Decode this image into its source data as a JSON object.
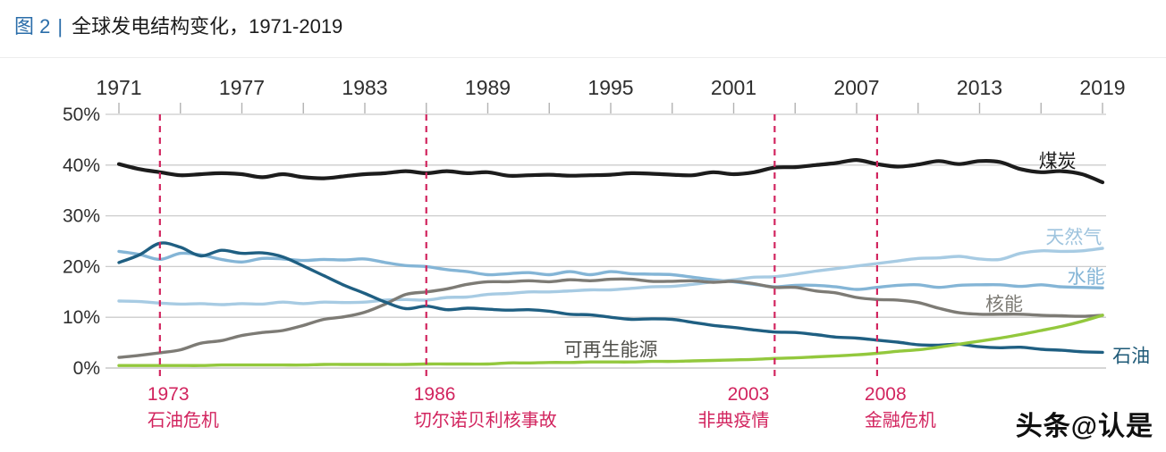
{
  "header": {
    "figure_tag": "图 2",
    "separator": "|",
    "title": "全球发电结构变化，1971-2019"
  },
  "watermark": "头条@认是",
  "chart_data": {
    "type": "line",
    "title": "全球发电结构变化，1971-2019",
    "xlabel": "",
    "ylabel": "",
    "xlim": [
      1971,
      2019
    ],
    "ylim": [
      0,
      50
    ],
    "grid": "horizontal",
    "legend_position": "inline-right",
    "x_ticks": [
      1971,
      1977,
      1983,
      1989,
      1995,
      2001,
      2007,
      2013,
      2019
    ],
    "y_ticks": [
      0,
      10,
      20,
      30,
      40,
      50
    ],
    "y_tick_suffix": "%",
    "x": [
      1971,
      1972,
      1973,
      1974,
      1975,
      1976,
      1977,
      1978,
      1979,
      1980,
      1981,
      1982,
      1983,
      1984,
      1985,
      1986,
      1987,
      1988,
      1989,
      1990,
      1991,
      1992,
      1993,
      1994,
      1995,
      1996,
      1997,
      1998,
      1999,
      2000,
      2001,
      2002,
      2003,
      2004,
      2005,
      2006,
      2007,
      2008,
      2009,
      2010,
      2011,
      2012,
      2013,
      2014,
      2015,
      2016,
      2017,
      2018,
      2019
    ],
    "series": [
      {
        "key": "hydro",
        "name": "水能",
        "color": "#84b5d6",
        "width": 3.4,
        "label": {
          "year": 2018.2,
          "pct": 18.0,
          "color": "#84b5d6"
        },
        "values": [
          23.0,
          22.4,
          21.4,
          22.6,
          22.3,
          21.4,
          20.9,
          21.6,
          21.5,
          21.2,
          21.4,
          21.3,
          21.5,
          20.8,
          20.2,
          20.0,
          19.4,
          19.0,
          18.4,
          18.6,
          18.8,
          18.4,
          19.0,
          18.4,
          19.0,
          18.6,
          18.5,
          18.4,
          17.9,
          17.4,
          17.0,
          16.5,
          16.0,
          16.3,
          16.3,
          16.0,
          15.5,
          15.9,
          16.3,
          16.4,
          15.9,
          16.3,
          16.4,
          16.4,
          16.1,
          16.4,
          16.0,
          15.9,
          15.8
        ]
      },
      {
        "key": "gas",
        "name": "天然气",
        "color": "#a7cbe3",
        "width": 3.4,
        "label": {
          "year": 2017.6,
          "pct": 25.8,
          "color": "#9fc4de"
        },
        "values": [
          13.2,
          13.1,
          12.8,
          12.6,
          12.7,
          12.5,
          12.7,
          12.6,
          13.0,
          12.7,
          13.0,
          12.9,
          13.0,
          13.4,
          13.5,
          13.4,
          13.9,
          14.0,
          14.5,
          14.7,
          15.0,
          15.0,
          15.2,
          15.4,
          15.4,
          15.7,
          16.0,
          16.1,
          16.5,
          17.0,
          17.4,
          17.9,
          18.0,
          18.5,
          19.1,
          19.6,
          20.1,
          20.6,
          21.1,
          21.6,
          21.7,
          22.0,
          21.5,
          21.4,
          22.6,
          23.1,
          23.0,
          23.1,
          23.6
        ]
      },
      {
        "key": "nuclear",
        "name": "核能",
        "color": "#7d7b75",
        "width": 3.4,
        "label": {
          "year": 2014.2,
          "pct": 12.6,
          "color": "#7d7b75"
        },
        "values": [
          2.1,
          2.5,
          3.0,
          3.6,
          4.9,
          5.4,
          6.4,
          7.0,
          7.4,
          8.4,
          9.6,
          10.1,
          11.0,
          12.6,
          14.5,
          15.0,
          15.6,
          16.5,
          17.0,
          17.0,
          17.2,
          17.0,
          17.4,
          17.2,
          17.5,
          17.5,
          17.1,
          17.1,
          17.2,
          16.9,
          17.1,
          16.6,
          15.9,
          15.9,
          15.2,
          14.8,
          13.9,
          13.5,
          13.4,
          12.9,
          11.8,
          10.9,
          10.6,
          10.6,
          10.6,
          10.4,
          10.3,
          10.2,
          10.4
        ]
      },
      {
        "key": "oil",
        "name": "石油",
        "color": "#1f5f82",
        "width": 3.4,
        "label": {
          "year": 2020.4,
          "pct": 2.4,
          "color": "#1d5977"
        },
        "values": [
          20.8,
          22.3,
          24.6,
          23.8,
          22.1,
          23.2,
          22.6,
          22.7,
          21.9,
          20.1,
          18.2,
          16.3,
          14.7,
          13.0,
          11.7,
          12.2,
          11.5,
          11.8,
          11.6,
          11.4,
          11.5,
          11.2,
          10.6,
          10.5,
          10.0,
          9.6,
          9.7,
          9.6,
          9.0,
          8.4,
          8.0,
          7.5,
          7.1,
          7.0,
          6.6,
          6.1,
          5.9,
          5.5,
          5.1,
          4.6,
          4.5,
          4.7,
          4.2,
          4.0,
          4.1,
          3.7,
          3.5,
          3.2,
          3.1
        ]
      },
      {
        "key": "renewables",
        "name": "可再生能源",
        "color": "#93c83d",
        "width": 3.4,
        "label": {
          "year": 1995.0,
          "pct": 3.6,
          "color": "#50504b"
        },
        "values": [
          0.5,
          0.5,
          0.5,
          0.5,
          0.5,
          0.6,
          0.6,
          0.6,
          0.6,
          0.6,
          0.7,
          0.7,
          0.7,
          0.7,
          0.7,
          0.8,
          0.8,
          0.8,
          0.8,
          1.0,
          1.0,
          1.1,
          1.1,
          1.2,
          1.2,
          1.2,
          1.3,
          1.3,
          1.4,
          1.5,
          1.6,
          1.7,
          1.9,
          2.0,
          2.2,
          2.4,
          2.6,
          2.9,
          3.3,
          3.6,
          4.1,
          4.7,
          5.3,
          5.9,
          6.6,
          7.4,
          8.2,
          9.2,
          10.4
        ]
      },
      {
        "key": "coal",
        "name": "煤炭",
        "color": "#1c1c1c",
        "width": 4.2,
        "label": {
          "year": 2016.8,
          "pct": 40.8,
          "color": "#1c1c1c"
        },
        "values": [
          40.2,
          39.2,
          38.6,
          38.0,
          38.2,
          38.4,
          38.2,
          37.6,
          38.2,
          37.6,
          37.4,
          37.8,
          38.2,
          38.4,
          38.8,
          38.4,
          38.8,
          38.4,
          38.6,
          37.9,
          38.0,
          38.1,
          37.9,
          38.0,
          38.1,
          38.4,
          38.3,
          38.1,
          38.0,
          38.6,
          38.2,
          38.6,
          39.5,
          39.6,
          40.0,
          40.4,
          41.0,
          40.2,
          39.7,
          40.1,
          40.8,
          40.2,
          40.8,
          40.6,
          39.2,
          38.6,
          38.8,
          38.2,
          36.6
        ]
      }
    ],
    "events": [
      {
        "year": 1973,
        "label": "1973",
        "desc": "石油危机",
        "align": "left"
      },
      {
        "year": 1986,
        "label": "1986",
        "desc": "切尔诺贝利核事故",
        "align": "left"
      },
      {
        "year": 2003,
        "label": "2003",
        "desc": "非典疫情",
        "align": "right"
      },
      {
        "year": 2008,
        "label": "2008",
        "desc": "金融危机",
        "align": "left"
      }
    ],
    "event_color": "#d2255f"
  }
}
